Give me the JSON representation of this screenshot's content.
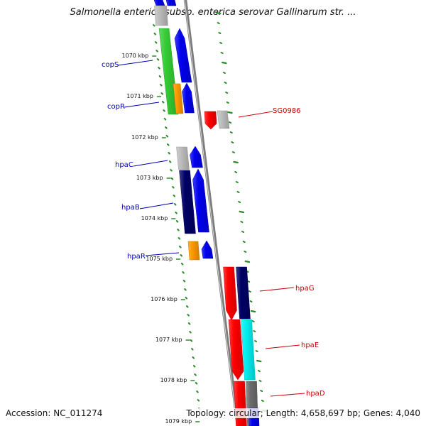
{
  "title": "Salmonella enterica subsp. enterica serovar Gallinarum str. ...",
  "footer": {
    "accession": "Accession: NC_011274",
    "summary": "Topology: circular; Length: 4,658,697 bp; Genes: 4,040"
  },
  "colors": {
    "green": "#33cc33",
    "blue": "#0000ee",
    "orange": "#ff9900",
    "gray": "#bdbdbd",
    "navy": "#000066",
    "red": "#ff0000",
    "cyan": "#00eeee",
    "darkgray": "#6b6b6b",
    "label_blue": "#0000b5",
    "label_red": "#cc0000",
    "ruler_green": "#2a8a2a"
  },
  "map": {
    "tick_labels": [
      "1070 kbp",
      "1071 kbp",
      "1072 kbp",
      "1073 kbp",
      "1074 kbp",
      "1075 kbp",
      "1076 kbp",
      "1077 kbp",
      "1078 kbp",
      "1079 kbp"
    ],
    "gene_labels": [
      "copS",
      "copR",
      "SG0986",
      "hpaC",
      "hpaB",
      "hpaR",
      "hpaG",
      "hpaE",
      "hpaD"
    ]
  }
}
